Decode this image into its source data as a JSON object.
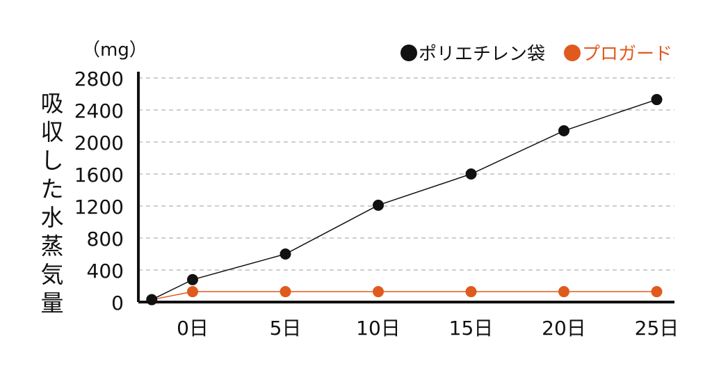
{
  "chart_data": {
    "type": "line",
    "unit_label": "（mg）",
    "ylabel": "吸収した水蒸気量",
    "xlabel": "",
    "title": "",
    "x_axis": {
      "ticks": [
        "0日",
        "5日",
        "10日",
        "15日",
        "20日",
        "25日"
      ]
    },
    "y_axis": {
      "ticks": [
        "0",
        "400",
        "800",
        "1200",
        "1600",
        "2000",
        "2400",
        "2800"
      ],
      "ylim": [
        0,
        2800
      ]
    },
    "grid": "horizontal dashed",
    "legend_position": "top-right",
    "series": [
      {
        "name": "ポリエチレン袋",
        "color": "#111111",
        "points": [
          {
            "x": -2.2,
            "y": 30
          },
          {
            "x": 0,
            "y": 280
          },
          {
            "x": 5,
            "y": 600
          },
          {
            "x": 10,
            "y": 1210
          },
          {
            "x": 15,
            "y": 1600
          },
          {
            "x": 20,
            "y": 2140
          },
          {
            "x": 25,
            "y": 2530
          }
        ]
      },
      {
        "name": "プロガード",
        "color": "#E05A1E",
        "points": [
          {
            "x": -2.2,
            "y": 30
          },
          {
            "x": 0,
            "y": 130
          },
          {
            "x": 5,
            "y": 130
          },
          {
            "x": 10,
            "y": 130
          },
          {
            "x": 15,
            "y": 130
          },
          {
            "x": 20,
            "y": 130
          },
          {
            "x": 25,
            "y": 130
          }
        ]
      }
    ]
  }
}
